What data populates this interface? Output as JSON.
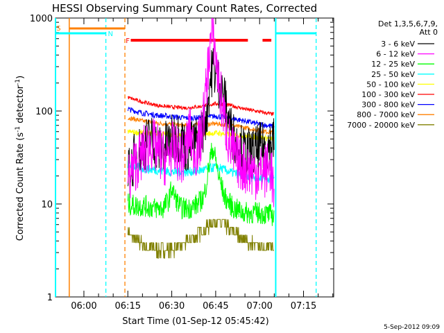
{
  "chart_data": {
    "type": "line",
    "title": "HESSI Observing Summary Count Rates, Corrected",
    "xlabel": "Start Time (01-Sep-12 05:45:42)",
    "ylabel": "Corrected Count Rate (s-1 detector-1)",
    "ylabel_parts": {
      "main": "Corrected Count Rate (s",
      "sup1": "-1",
      "mid": " detector",
      "sup2": "-1",
      "end": ")"
    },
    "yscale": "log",
    "ylim": [
      1,
      1000
    ],
    "xlim_minutes": [
      5.3,
      100.3
    ],
    "y_ticks": [
      {
        "value": 1,
        "label": "1"
      },
      {
        "value": 10,
        "label": "10"
      },
      {
        "value": 100,
        "label": "100"
      },
      {
        "value": 1000,
        "label": "1000"
      }
    ],
    "x_ticks": [
      {
        "minutes": 15,
        "label": "06:00"
      },
      {
        "minutes": 30,
        "label": "06:15"
      },
      {
        "minutes": 45,
        "label": "06:30"
      },
      {
        "minutes": 60,
        "label": "06:45"
      },
      {
        "minutes": 75,
        "label": "07:00"
      },
      {
        "minutes": 90,
        "label": "07:15"
      }
    ],
    "legend": {
      "header1": "Det 1,3,5,6,7,9,",
      "header2": "Att 0",
      "placement": "right"
    },
    "series": [
      {
        "name": "3 - 6 keV",
        "color": "#000000",
        "x": [
          30,
          32,
          35,
          38,
          41,
          44,
          47,
          50,
          53,
          55,
          57,
          58,
          59,
          60,
          61,
          63,
          65,
          67,
          70,
          73,
          75,
          78,
          80
        ],
        "y": [
          20,
          30,
          42,
          50,
          38,
          45,
          55,
          40,
          45,
          55,
          100,
          200,
          300,
          250,
          200,
          130,
          65,
          45,
          35,
          35,
          40,
          42,
          48
        ]
      },
      {
        "name": "6 - 12 keV",
        "color": "#ff00ff",
        "x": [
          30,
          32,
          35,
          38,
          41,
          43,
          45,
          47,
          49,
          51,
          53,
          55,
          57,
          58,
          59,
          60,
          61,
          63,
          65,
          67,
          70,
          73,
          76,
          79,
          80
        ],
        "y": [
          18,
          25,
          35,
          45,
          35,
          30,
          40,
          35,
          30,
          60,
          35,
          50,
          200,
          500,
          720,
          400,
          200,
          80,
          40,
          30,
          25,
          22,
          22,
          25,
          10
        ]
      },
      {
        "name": "12 - 25 keV",
        "color": "#00ff00",
        "x": [
          30,
          33,
          36,
          39,
          42,
          44,
          45,
          46,
          48,
          51,
          54,
          56,
          57,
          58,
          59,
          60,
          61,
          63,
          66,
          70,
          75,
          80
        ],
        "y": [
          10,
          9.5,
          9.5,
          9,
          9,
          11,
          15,
          12,
          9,
          9,
          10,
          12,
          18,
          30,
          40,
          30,
          20,
          12,
          9,
          8,
          8,
          7.5
        ]
      },
      {
        "name": "25 - 50 keV",
        "color": "#00ffff",
        "x": [
          30,
          35,
          40,
          45,
          50,
          55,
          58,
          60,
          62,
          65,
          70,
          75,
          80
        ],
        "y": [
          27,
          24,
          23,
          22,
          22,
          23,
          24,
          25,
          24,
          22,
          20,
          19,
          19
        ]
      },
      {
        "name": "50 - 100 keV",
        "color": "#ffff00",
        "x": [
          30,
          35,
          40,
          45,
          50,
          55,
          60,
          65,
          70,
          75,
          80
        ],
        "y": [
          60,
          58,
          57,
          56,
          55,
          56,
          58,
          56,
          54,
          52,
          50
        ]
      },
      {
        "name": "100 - 300 keV",
        "color": "#ff0000",
        "x": [
          30,
          35,
          40,
          45,
          50,
          55,
          60,
          65,
          70,
          75,
          80
        ],
        "y": [
          140,
          125,
          115,
          110,
          108,
          112,
          120,
          115,
          105,
          98,
          92
        ]
      },
      {
        "name": "300 - 800 keV",
        "color": "#0000ff",
        "x": [
          30,
          35,
          40,
          45,
          50,
          55,
          60,
          65,
          70,
          75,
          80
        ],
        "y": [
          105,
          95,
          90,
          87,
          84,
          85,
          88,
          84,
          78,
          72,
          68
        ]
      },
      {
        "name": "800 - 7000 keV",
        "color": "#ff8000",
        "x": [
          30,
          35,
          40,
          45,
          50,
          55,
          60,
          65,
          70,
          75,
          80
        ],
        "y": [
          85,
          78,
          74,
          72,
          70,
          71,
          73,
          70,
          66,
          62,
          58
        ]
      },
      {
        "name": "7000 - 20000 keV",
        "color": "#808000",
        "x": [
          30,
          33,
          36,
          40,
          45,
          50,
          55,
          58,
          60,
          63,
          66,
          70,
          75,
          80
        ],
        "y": [
          5,
          4,
          3.5,
          3.2,
          3.2,
          3.8,
          5,
          6,
          6.5,
          6,
          5,
          4,
          3.5,
          3.3
        ]
      }
    ],
    "annotations": [
      {
        "label": "S",
        "color": "#ff8000"
      },
      {
        "label": "N",
        "color": "#00ffff"
      },
      {
        "label": "F",
        "color": "#ff0000"
      }
    ],
    "markers": {
      "orange_solid_vline": 10,
      "orange_dashed_vline": 29,
      "cyan_solid_vlines": [
        5.3,
        80.5
      ],
      "cyan_dashed_vlines": [
        22.5,
        94.3
      ],
      "cyan_flag_bars": [
        [
          5.3,
          22.5
        ],
        [
          80.5,
          94.3
        ]
      ],
      "orange_flag_bar": [
        10,
        29
      ],
      "red_flag_bars": [
        [
          31,
          71
        ],
        [
          76,
          79
        ]
      ]
    },
    "footer_date": "5-Sep-2012 09:09",
    "grid": false
  }
}
